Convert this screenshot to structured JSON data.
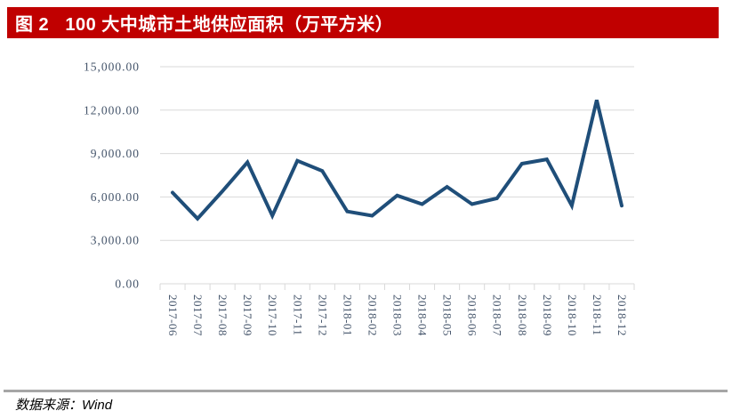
{
  "header": {
    "title": "图 2   100 大中城市土地供应面积（万平方米）",
    "bg_color": "#C00000",
    "text_color": "#FFFFFF"
  },
  "footer": {
    "source_label": "数据来源：Wind"
  },
  "chart_data": {
    "type": "line",
    "title": "100 大中城市土地供应面积（万平方米）",
    "categories": [
      "2017-06",
      "2017-07",
      "2017-08",
      "2017-09",
      "2017-10",
      "2017-11",
      "2017-12",
      "2018-01",
      "2018-02",
      "2018-03",
      "2018-04",
      "2018-05",
      "2018-06",
      "2018-07",
      "2018-08",
      "2018-09",
      "2018-10",
      "2018-11",
      "2018-12"
    ],
    "values": [
      6300,
      4500,
      6400,
      8400,
      4700,
      8500,
      7800,
      5000,
      4700,
      6100,
      5500,
      6700,
      5500,
      5900,
      8300,
      8600,
      5400,
      12700,
      5400
    ],
    "xlabel": "",
    "ylabel": "",
    "ylim": [
      0,
      15000
    ],
    "ytick_interval": 3000,
    "ytick_labels": [
      "0.00",
      "3,000.00",
      "6,000.00",
      "9,000.00",
      "12,000.00",
      "15,000.00"
    ],
    "legend": "none",
    "grid": "horizontal",
    "colors": {
      "line": "#1F4E79",
      "gridline": "#D9D9D9",
      "axis_label": "#44546A"
    }
  }
}
